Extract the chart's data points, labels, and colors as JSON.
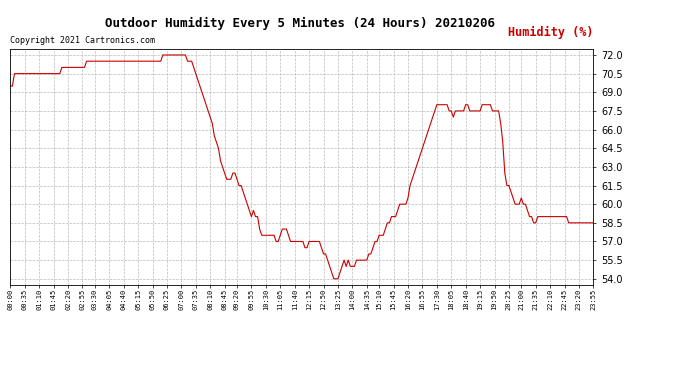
{
  "title": "Outdoor Humidity Every 5 Minutes (24 Hours) 20210206",
  "ylabel": "Humidity (%)",
  "copyright": "Copyright 2021 Cartronics.com",
  "line_color": "#cc0000",
  "background_color": "#ffffff",
  "grid_color": "#bbbbbb",
  "ylim": [
    53.5,
    72.5
  ],
  "yticks": [
    54.0,
    55.5,
    57.0,
    58.5,
    60.0,
    61.5,
    63.0,
    64.5,
    66.0,
    67.5,
    69.0,
    70.5,
    72.0
  ],
  "xtick_labels": [
    "00:00",
    "00:35",
    "01:10",
    "01:45",
    "02:20",
    "02:55",
    "03:30",
    "04:05",
    "04:40",
    "05:15",
    "05:50",
    "06:25",
    "07:00",
    "07:35",
    "08:10",
    "08:45",
    "09:20",
    "09:55",
    "10:30",
    "11:05",
    "11:40",
    "12:15",
    "12:50",
    "13:25",
    "14:00",
    "14:35",
    "15:10",
    "15:45",
    "16:20",
    "16:55",
    "17:30",
    "18:05",
    "18:40",
    "19:15",
    "19:50",
    "20:25",
    "21:00",
    "21:35",
    "22:10",
    "22:45",
    "23:20",
    "23:55"
  ],
  "humidity_values": [
    69.5,
    69.5,
    70.5,
    70.5,
    70.5,
    70.5,
    70.5,
    70.5,
    70.5,
    70.5,
    70.5,
    70.5,
    70.5,
    70.5,
    70.5,
    70.5,
    70.5,
    70.5,
    70.5,
    70.5,
    70.5,
    70.5,
    70.5,
    70.5,
    70.5,
    71.0,
    71.0,
    71.0,
    71.0,
    71.0,
    71.0,
    71.0,
    71.0,
    71.0,
    71.0,
    71.0,
    71.0,
    71.5,
    71.5,
    71.5,
    71.5,
    71.5,
    71.5,
    71.5,
    71.5,
    71.5,
    71.5,
    71.5,
    71.5,
    71.5,
    71.5,
    71.5,
    71.5,
    71.5,
    71.5,
    71.5,
    71.5,
    71.5,
    71.5,
    71.5,
    71.5,
    71.5,
    71.5,
    71.5,
    71.5,
    71.5,
    71.5,
    71.5,
    71.5,
    71.5,
    71.5,
    71.5,
    71.5,
    71.5,
    72.0,
    72.0,
    72.0,
    72.0,
    72.0,
    72.0,
    72.0,
    72.0,
    72.0,
    72.0,
    72.0,
    72.0,
    71.5,
    71.5,
    71.5,
    71.0,
    70.5,
    70.0,
    69.5,
    69.0,
    68.5,
    68.0,
    67.5,
    67.0,
    66.5,
    65.5,
    65.0,
    64.5,
    63.5,
    63.0,
    62.5,
    62.0,
    62.0,
    62.0,
    62.5,
    62.5,
    62.0,
    61.5,
    61.5,
    61.0,
    60.5,
    60.0,
    59.5,
    59.0,
    59.5,
    59.0,
    59.0,
    58.0,
    57.5,
    57.5,
    57.5,
    57.5,
    57.5,
    57.5,
    57.5,
    57.0,
    57.0,
    57.5,
    58.0,
    58.0,
    58.0,
    57.5,
    57.0,
    57.0,
    57.0,
    57.0,
    57.0,
    57.0,
    57.0,
    56.5,
    56.5,
    57.0,
    57.0,
    57.0,
    57.0,
    57.0,
    57.0,
    56.5,
    56.0,
    56.0,
    55.5,
    55.0,
    54.5,
    54.0,
    54.0,
    54.0,
    54.5,
    55.0,
    55.5,
    55.0,
    55.5,
    55.0,
    55.0,
    55.0,
    55.5,
    55.5,
    55.5,
    55.5,
    55.5,
    55.5,
    56.0,
    56.0,
    56.5,
    57.0,
    57.0,
    57.5,
    57.5,
    57.5,
    58.0,
    58.5,
    58.5,
    59.0,
    59.0,
    59.0,
    59.5,
    60.0,
    60.0,
    60.0,
    60.0,
    60.5,
    61.5,
    62.0,
    62.5,
    63.0,
    63.5,
    64.0,
    64.5,
    65.0,
    65.5,
    66.0,
    66.5,
    67.0,
    67.5,
    68.0,
    68.0,
    68.0,
    68.0,
    68.0,
    68.0,
    67.5,
    67.5,
    67.0,
    67.5,
    67.5,
    67.5,
    67.5,
    67.5,
    68.0,
    68.0,
    67.5,
    67.5,
    67.5,
    67.5,
    67.5,
    67.5,
    68.0,
    68.0,
    68.0,
    68.0,
    68.0,
    67.5,
    67.5,
    67.5,
    67.5,
    66.5,
    65.0,
    62.5,
    61.5,
    61.5,
    61.0,
    60.5,
    60.0,
    60.0,
    60.0,
    60.5,
    60.0,
    60.0,
    59.5,
    59.0,
    59.0,
    58.5,
    58.5,
    59.0,
    59.0,
    59.0,
    59.0,
    59.0,
    59.0,
    59.0,
    59.0,
    59.0,
    59.0,
    59.0,
    59.0,
    59.0,
    59.0,
    59.0,
    58.5,
    58.5,
    58.5,
    58.5,
    58.5,
    58.5,
    58.5,
    58.5,
    58.5,
    58.5,
    58.5,
    58.5,
    58.5
  ]
}
